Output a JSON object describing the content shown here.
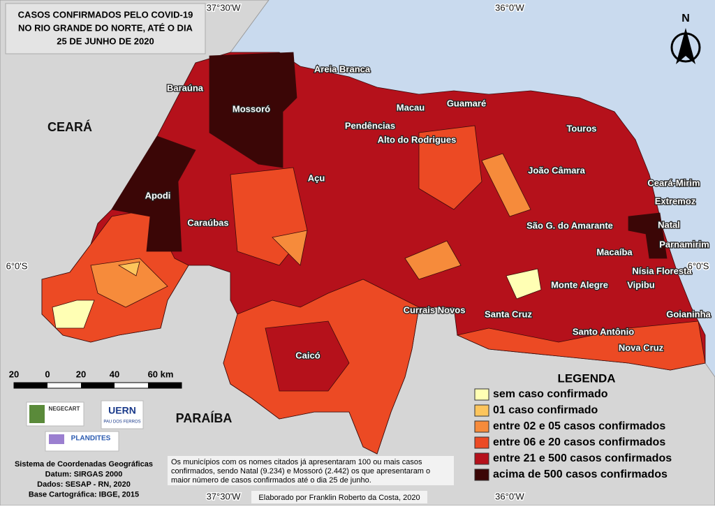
{
  "title": [
    "CASOS CONFIRMADOS PELO COVID-19",
    "NO RIO GRANDE DO NORTE, ATÉ O DIA",
    "25 DE JUNHO DE 2020"
  ],
  "coordinates": {
    "top": [
      "37°30'W",
      "36°0'W"
    ],
    "bottom": [
      "37°30'W",
      "36°0'W"
    ],
    "left": "6°0'S",
    "right": "6°0'S"
  },
  "north": "N",
  "states": [
    "CEARÁ",
    "PARAÍBA"
  ],
  "cities": [
    "Areia Branca",
    "Baraúna",
    "Mossoró",
    "Macau",
    "Guamaré",
    "Pendências",
    "Alto do Rodrigues",
    "Touros",
    "Açu",
    "João Câmara",
    "Ceará-Mirim",
    "Extremoz",
    "Apodi",
    "Caraúbas",
    "São G. do Amarante",
    "Natal",
    "Macaíba",
    "Parnamirim",
    "Nísia Floresta",
    "Monte Alegre",
    "Vipibu",
    "Currais Novos",
    "Santa Cruz",
    "Goianinha",
    "Santo Antônio",
    "Nova Cruz",
    "Caicó"
  ],
  "scale": [
    "20",
    "0",
    "20",
    "40",
    "60 km"
  ],
  "legend": {
    "title": "LEGENDA",
    "items": [
      {
        "label": "sem caso confirmado",
        "color": "#ffffb4"
      },
      {
        "label": "01 caso confirmado",
        "color": "#fdc55c"
      },
      {
        "label": "entre 02 e 05 casos confirmados",
        "color": "#f68b3b"
      },
      {
        "label": "entre 06 e 20 casos confirmados",
        "color": "#ec4a24"
      },
      {
        "label": "entre 21 e 500 casos confirmados",
        "color": "#b5111b"
      },
      {
        "label": "acima de 500 casos confirmados",
        "color": "#3b0606"
      }
    ]
  },
  "logos": [
    "NEGECART",
    "UERN",
    "PAU DOS FERROS",
    "PLANDITES"
  ],
  "info": [
    "Sistema de Coordenadas Geográficas",
    "Datum: SIRGAS 2000",
    "Dados: SESAP - RN, 2020",
    "Base Cartográfica: IBGE, 2015"
  ],
  "note": [
    "Os municípios com os nomes citados já apresentaram 100 ou mais casos",
    "confirmados, sendo Natal (9.234) e Mossoró (2.442) os que apresentaram o",
    "maior número de casos confirmados até o dia 25 de junho."
  ],
  "credit": "Elaborado por Franklin Roberto da Costa, 2020"
}
